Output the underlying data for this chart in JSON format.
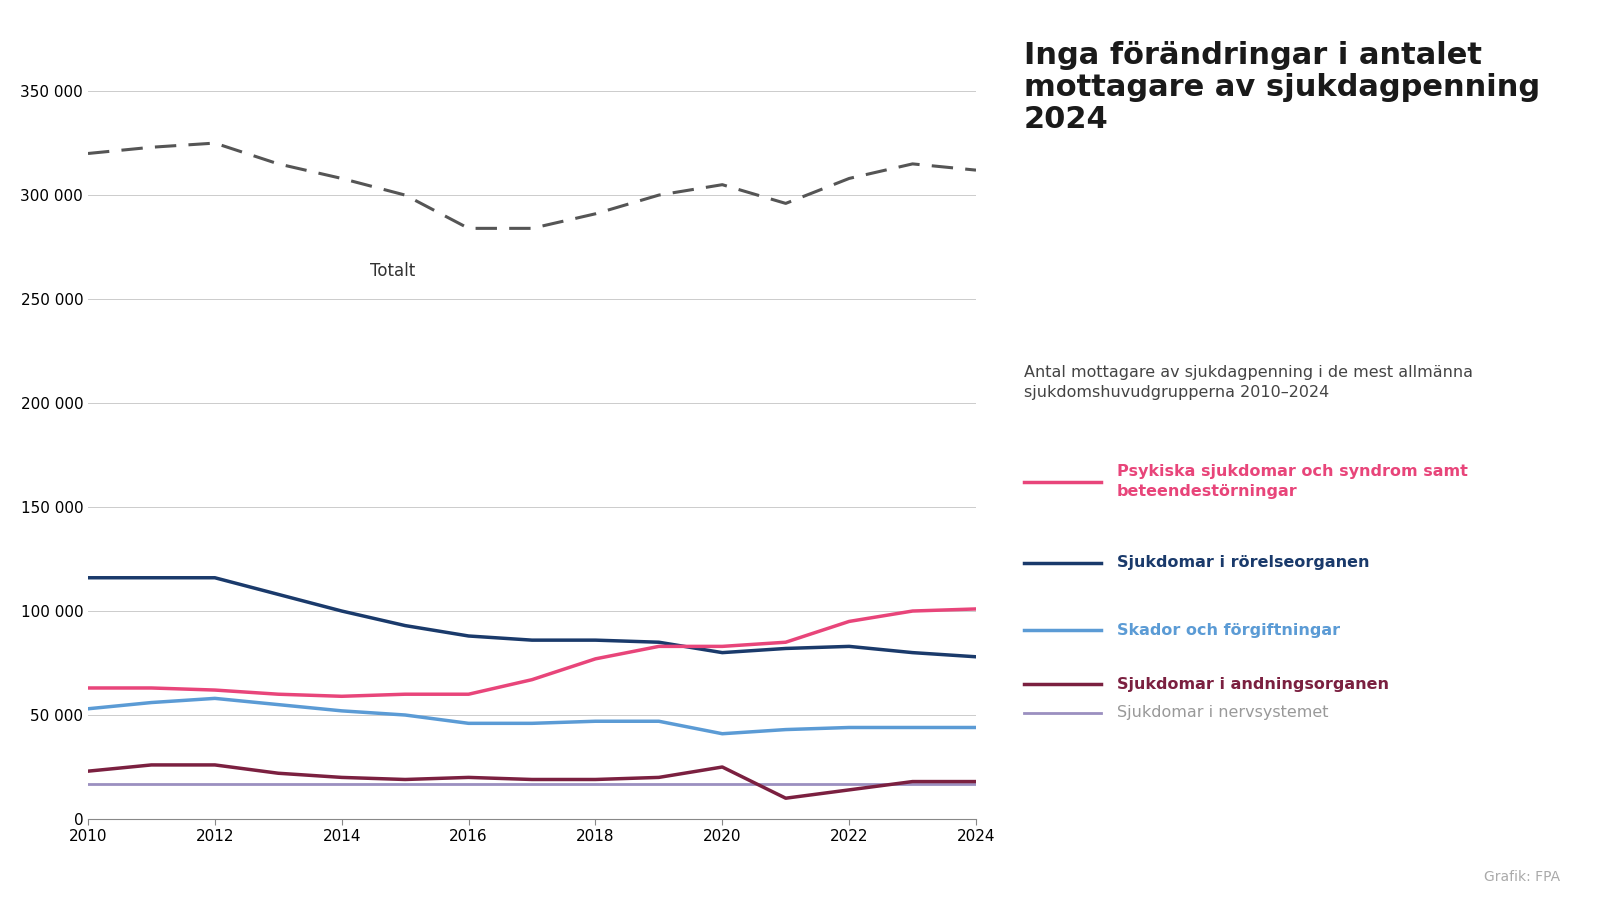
{
  "years": [
    2010,
    2011,
    2012,
    2013,
    2014,
    2015,
    2016,
    2017,
    2018,
    2019,
    2020,
    2021,
    2022,
    2023,
    2024
  ],
  "totalt": [
    320000,
    323000,
    325000,
    315000,
    308000,
    300000,
    284000,
    284000,
    291000,
    300000,
    305000,
    296000,
    308000,
    315000,
    312000
  ],
  "psykiska": [
    63000,
    63000,
    62000,
    60000,
    59000,
    60000,
    60000,
    67000,
    77000,
    83000,
    83000,
    85000,
    95000,
    100000,
    101000
  ],
  "rorelseorganen": [
    116000,
    116000,
    116000,
    108000,
    100000,
    93000,
    88000,
    86000,
    86000,
    85000,
    80000,
    82000,
    83000,
    80000,
    78000
  ],
  "skador": [
    53000,
    56000,
    58000,
    55000,
    52000,
    50000,
    46000,
    46000,
    47000,
    47000,
    41000,
    43000,
    44000,
    44000,
    44000
  ],
  "andningsorganen": [
    23000,
    26000,
    26000,
    22000,
    20000,
    19000,
    20000,
    19000,
    19000,
    20000,
    25000,
    10000,
    14000,
    18000,
    18000
  ],
  "nervsystemet": [
    17000,
    17000,
    17000,
    17000,
    17000,
    17000,
    17000,
    17000,
    17000,
    17000,
    17000,
    17000,
    17000,
    17000,
    17000
  ],
  "title": "Inga förändringar i antalet\nmottagare av sjukdagpenning\n2024",
  "subtitle": "Antal mottagare av sjukdagpenning i de mest allmänna\nsjukdomshuvudgrupperna 2010–2024",
  "totalt_label": "Totalt",
  "legend_psykiska_label": "Psykiska sjukdomar och syndrom samt\nbeteendestörningar",
  "legend_rorelse_label": "Sjukdomar i rörelseorganen",
  "legend_skador_label": "Skador och förgiftningar",
  "legend_andning_label": "Sjukdomar i andningsorganen",
  "legend_nerv_label": "Sjukdomar i nervsystemet",
  "grafik_label": "Grafik: FPA",
  "color_totalt": "#555555",
  "color_psykiska": "#e8457a",
  "color_rorelseorganen": "#1a3a6b",
  "color_skador": "#5b9bd5",
  "color_andningsorganen": "#7b2040",
  "color_nervsystemet": "#9b8fc0",
  "ylim": [
    0,
    370000
  ],
  "yticks": [
    0,
    50000,
    100000,
    150000,
    200000,
    250000,
    300000,
    350000
  ]
}
